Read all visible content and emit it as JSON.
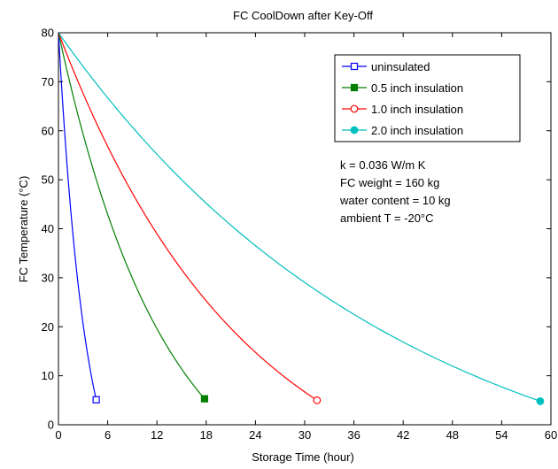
{
  "chart_data": {
    "type": "line",
    "title": "FC CoolDown after Key-Off",
    "xlabel": "Storage Time (hour)",
    "ylabel": "FC Temperature (°C)",
    "xlim": [
      0,
      60
    ],
    "ylim": [
      0,
      80
    ],
    "xticks": [
      0,
      6,
      12,
      18,
      24,
      30,
      36,
      42,
      48,
      54,
      60
    ],
    "yticks": [
      0,
      10,
      20,
      30,
      40,
      50,
      60,
      70,
      80
    ],
    "xtick_labels": [
      "0",
      "6",
      "12",
      "18",
      "24",
      "30",
      "36",
      "42",
      "48",
      "54",
      "60"
    ],
    "ytick_labels": [
      "0",
      "10",
      "20",
      "30",
      "40",
      "50",
      "60",
      "70",
      "80"
    ],
    "grid": false,
    "legend_position": "top-right",
    "ambient_temperature": -20,
    "initial_temperature": 80,
    "series": [
      {
        "name": "uninsulated",
        "color": "#0000ff",
        "marker": "square-open",
        "end": [
          4.6,
          5.1
        ]
      },
      {
        "name": "0.5 inch insulation",
        "color": "#007f00",
        "marker": "square-filled",
        "end": [
          17.8,
          5.3
        ]
      },
      {
        "name": "1.0 inch insulation",
        "color": "#ff0000",
        "marker": "circle-open",
        "end": [
          31.5,
          5.0
        ]
      },
      {
        "name": "2.0 inch insulation",
        "color": "#00bfbf",
        "marker": "circle-filled",
        "end": [
          58.7,
          4.8
        ]
      }
    ],
    "annotations": [
      "k = 0.036 W/m K",
      "FC weight = 160 kg",
      "water content = 10 kg",
      "ambient T = -20°C"
    ]
  }
}
